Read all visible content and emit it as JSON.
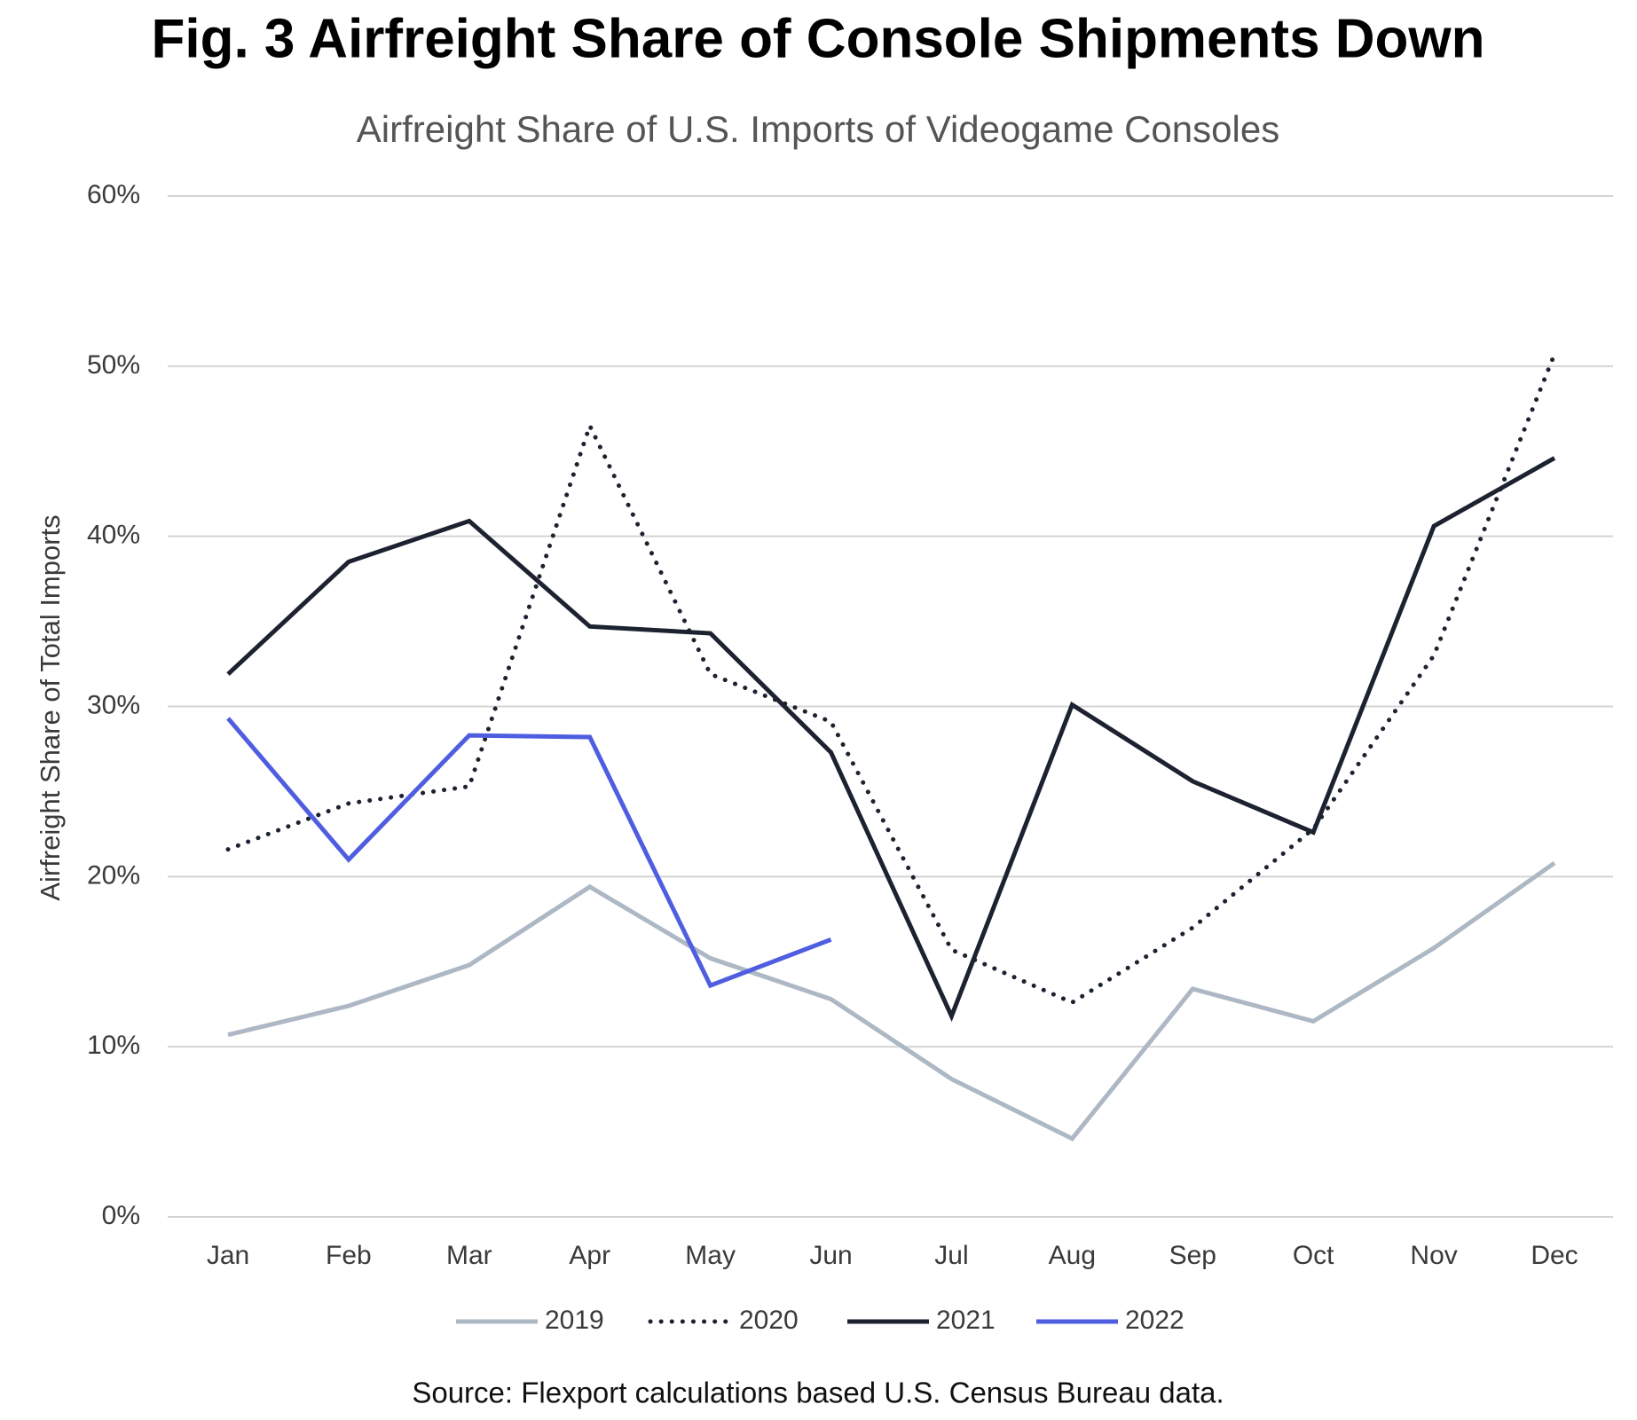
{
  "chart_data": {
    "type": "line",
    "title": "Fig. 3 Airfreight Share of Console Shipments Down",
    "subtitle": "Airfreight Share of U.S. Imports of Videogame Consoles",
    "y_label": "Airfreight Share of Total Imports",
    "source": "Source: Flexport calculations based U.S. Census Bureau data.",
    "categories": [
      "Jan",
      "Feb",
      "Mar",
      "Apr",
      "May",
      "Jun",
      "Jul",
      "Aug",
      "Sep",
      "Oct",
      "Nov",
      "Dec"
    ],
    "series": [
      {
        "name": "2019",
        "color": "#adb8c4",
        "dash": "solid",
        "values": [
          10.7,
          12.4,
          14.8,
          19.4,
          15.2,
          12.8,
          8.1,
          4.6,
          13.4,
          11.5,
          15.8,
          20.8
        ]
      },
      {
        "name": "2020",
        "color": "#1c2230",
        "dash": "dotted",
        "values": [
          21.6,
          24.3,
          25.3,
          46.5,
          31.9,
          29.1,
          15.7,
          12.6,
          17.0,
          22.8,
          33.0,
          50.7
        ]
      },
      {
        "name": "2021",
        "color": "#1c2230",
        "dash": "solid",
        "values": [
          31.9,
          38.5,
          40.9,
          34.7,
          34.3,
          27.3,
          11.8,
          30.1,
          25.6,
          22.6,
          40.6,
          44.6
        ]
      },
      {
        "name": "2022",
        "color": "#4f5ee0",
        "dash": "solid",
        "values": [
          29.3,
          21.0,
          28.3,
          28.2,
          13.6,
          16.3,
          null,
          null,
          null,
          null,
          null,
          null
        ]
      }
    ],
    "ylim": [
      0,
      60
    ],
    "yticks": [
      {
        "value": 0,
        "label": "0%"
      },
      {
        "value": 10,
        "label": "10%"
      },
      {
        "value": 20,
        "label": "20%"
      },
      {
        "value": 30,
        "label": "30%"
      },
      {
        "value": 40,
        "label": "40%"
      },
      {
        "value": 50,
        "label": "50%"
      },
      {
        "value": 60,
        "label": "60%"
      }
    ],
    "grid": true
  }
}
